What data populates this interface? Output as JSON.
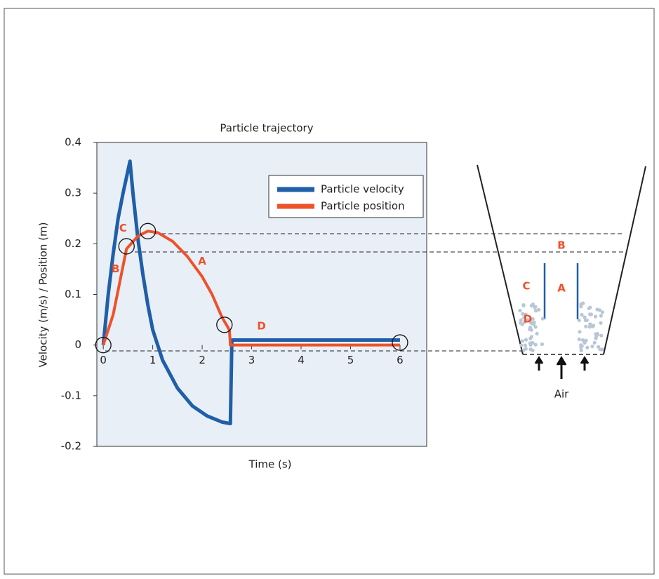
{
  "chart_data": {
    "type": "line",
    "title": "Particle trajectory",
    "x_label": "Time (s)",
    "y_label": "Velocity (m/s) / Position (m)",
    "xlim": [
      -0.13,
      6.54
    ],
    "ylim": [
      -0.2,
      0.4
    ],
    "xticks": [
      0,
      1,
      2,
      3,
      4,
      5,
      6
    ],
    "yticks": [
      -0.2,
      -0.1,
      0,
      0.1,
      0.2,
      0.3,
      0.4
    ],
    "legend": "upper right",
    "series": [
      {
        "name": "Particle velocity",
        "color": "#1f5fa8",
        "x": [
          0,
          0.1,
          0.2,
          0.3,
          0.4,
          0.54,
          0.6,
          0.7,
          0.8,
          0.9,
          1.0,
          1.2,
          1.5,
          1.8,
          2.1,
          2.4,
          2.57,
          2.6,
          2.75,
          6
        ],
        "values": [
          0,
          0.1,
          0.18,
          0.25,
          0.3,
          0.363,
          0.3,
          0.21,
          0.14,
          0.08,
          0.03,
          -0.03,
          -0.085,
          -0.12,
          -0.14,
          -0.152,
          -0.155,
          0.01,
          0.01,
          0.01
        ]
      },
      {
        "name": "Particle position",
        "color": "#ef5129",
        "x": [
          0,
          0.2,
          0.47,
          0.7,
          0.9,
          1.1,
          1.4,
          1.7,
          2.0,
          2.2,
          2.4,
          2.55,
          2.57,
          2.7,
          6
        ],
        "values": [
          0,
          0.06,
          0.19,
          0.215,
          0.225,
          0.222,
          0.205,
          0.175,
          0.135,
          0.1,
          0.055,
          0.03,
          0,
          0,
          0
        ]
      }
    ],
    "highlights": [
      {
        "x": 0,
        "y": 0
      },
      {
        "x": 0.47,
        "y": 0.195
      },
      {
        "x": 0.9,
        "y": 0.225
      },
      {
        "x": 2.45,
        "y": 0.04
      },
      {
        "x": 6,
        "y": 0.005
      }
    ],
    "annotations": [
      {
        "text": "C",
        "x": 0.4,
        "y": 0.23
      },
      {
        "text": "B",
        "x": 0.25,
        "y": 0.15
      },
      {
        "text": "A",
        "x": 2.0,
        "y": 0.165
      },
      {
        "text": "D",
        "x": 3.2,
        "y": 0.037
      }
    ]
  },
  "diagram": {
    "labels": [
      "B",
      "C",
      "A",
      "D"
    ],
    "air": "Air"
  }
}
